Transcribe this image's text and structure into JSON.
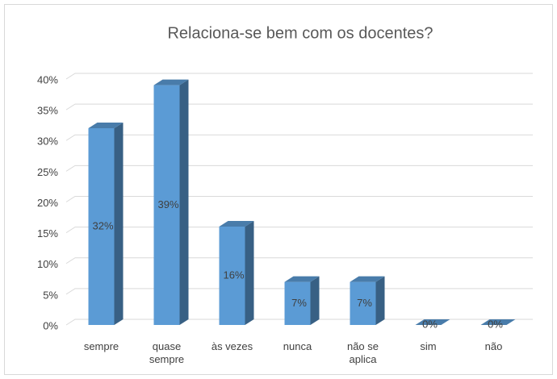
{
  "chart_data": {
    "type": "bar3d",
    "title": "Relaciona-se bem com os docentes?",
    "categories": [
      "sempre",
      "quase sempre",
      "às vezes",
      "nunca",
      "não se aplica",
      "sim",
      "não"
    ],
    "values": [
      32,
      39,
      16,
      7,
      7,
      0,
      0
    ],
    "value_labels": [
      "32%",
      "39%",
      "16%",
      "7%",
      "7%",
      "0%",
      "0%"
    ],
    "color": "#5b9bd5",
    "ylim": [
      0,
      40
    ],
    "yticks": [
      {
        "value": 0,
        "label": "0%"
      },
      {
        "value": 5,
        "label": "5%"
      },
      {
        "value": 10,
        "label": "10%"
      },
      {
        "value": 15,
        "label": "15%"
      },
      {
        "value": 20,
        "label": "20%"
      },
      {
        "value": 25,
        "label": "25%"
      },
      {
        "value": 30,
        "label": "30%"
      },
      {
        "value": 35,
        "label": "35%"
      },
      {
        "value": 40,
        "label": "40%"
      }
    ],
    "grid": true
  }
}
